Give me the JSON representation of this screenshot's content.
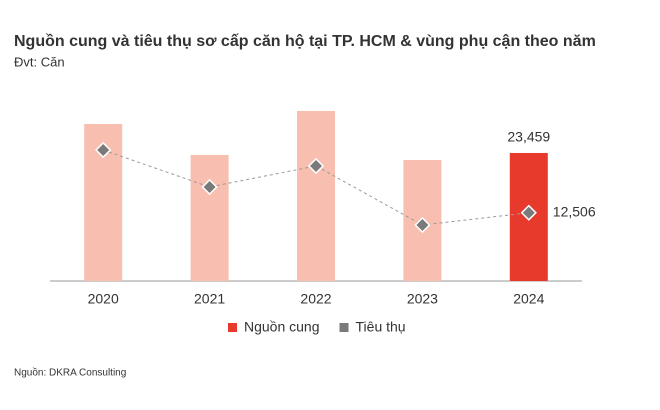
{
  "chart_data": {
    "type": "bar-line",
    "title": "Nguồn cung và tiêu thụ sơ cấp căn hộ tại TP. HCM & vùng phụ cận theo năm",
    "subtitle": "Đvt: Căn",
    "source": "Nguồn: DKRA Consulting",
    "categories": [
      "2020",
      "2021",
      "2022",
      "2023",
      "2024"
    ],
    "ylim": [
      0,
      35000
    ],
    "series": [
      {
        "name": "Nguồn cung",
        "type": "bar",
        "color": "#e8392d",
        "bar_colors": [
          "#f8bfb0",
          "#f8bfb0",
          "#f8bfb0",
          "#f8bfb0",
          "#e8392d"
        ],
        "values": [
          28770,
          23100,
          31160,
          22180,
          23459
        ],
        "value_labels": [
          null,
          null,
          null,
          null,
          "23,459"
        ]
      },
      {
        "name": "Tiêu thụ",
        "type": "line",
        "color": "#7a7a7a",
        "values": [
          24000,
          17230,
          21080,
          10260,
          12506
        ],
        "value_labels": [
          null,
          null,
          null,
          null,
          "12,506"
        ]
      }
    ]
  }
}
